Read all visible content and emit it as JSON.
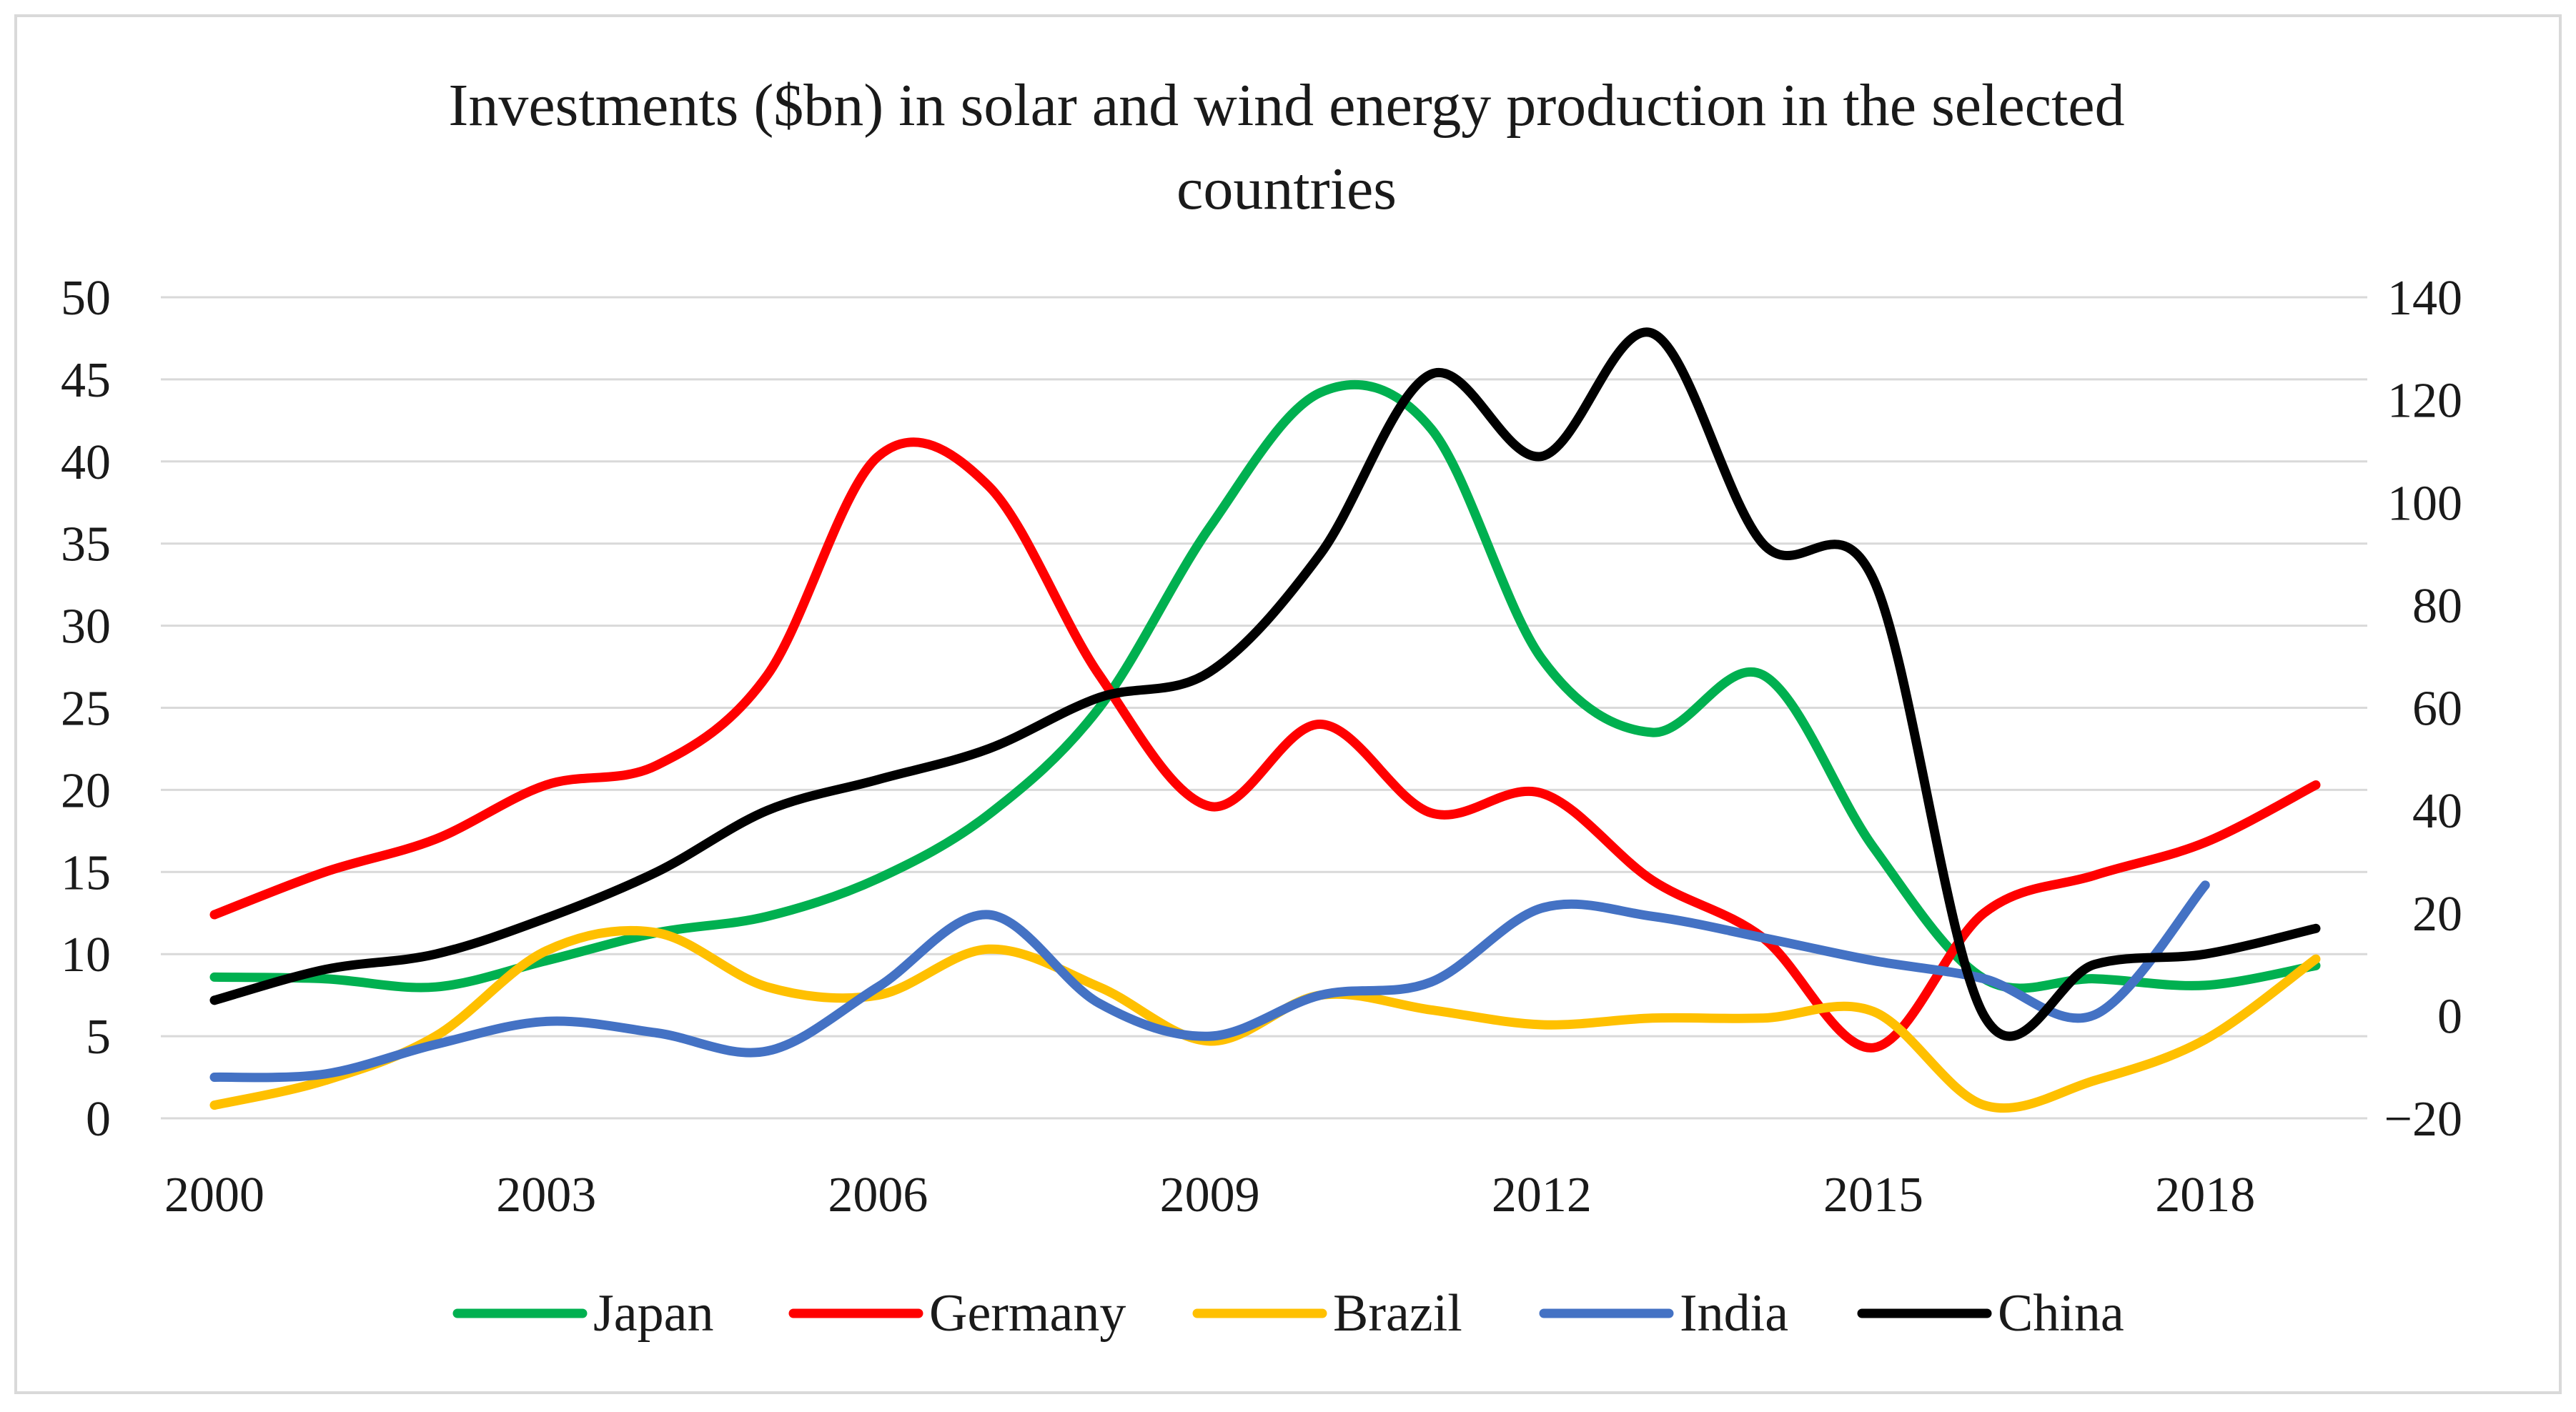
{
  "chart_data": {
    "type": "line",
    "title_lines": [
      "Investments  ($bn) in solar and wind energy production in the selected",
      "countries"
    ],
    "x": [
      2000,
      2001,
      2002,
      2003,
      2004,
      2005,
      2006,
      2007,
      2008,
      2009,
      2010,
      2011,
      2012,
      2013,
      2014,
      2015,
      2016,
      2017,
      2018,
      2019
    ],
    "x_tick_labels": [
      "2000",
      "2003",
      "2006",
      "2009",
      "2012",
      "2015",
      "2018"
    ],
    "left_axis": {
      "ylim": [
        0,
        50
      ],
      "tick_labels": [
        "0",
        "5",
        "10",
        "15",
        "20",
        "25",
        "30",
        "35",
        "40",
        "45",
        "50"
      ]
    },
    "right_axis": {
      "ylim": [
        -20,
        140
      ],
      "tick_labels": [
        "−20",
        "0",
        "20",
        "40",
        "60",
        "80",
        "100",
        "120",
        "140"
      ]
    },
    "grid": true,
    "legend_position": "bottom",
    "series": [
      {
        "name": "Japan",
        "color": "#00b050",
        "axis": "left",
        "values": [
          8.6,
          8.5,
          8.0,
          9.6,
          11.3,
          12.3,
          14.6,
          18.5,
          25.0,
          36.0,
          44.2,
          42.0,
          28.0,
          23.5,
          27.0,
          16.5,
          8.5,
          8.5,
          8.1,
          9.3
        ]
      },
      {
        "name": "Germany",
        "color": "#ff0000",
        "axis": "left",
        "values": [
          12.4,
          15.0,
          17.0,
          20.3,
          21.5,
          27.0,
          40.3,
          38.5,
          27.0,
          19.0,
          24.0,
          18.6,
          19.8,
          14.5,
          11.0,
          4.3,
          12.5,
          14.8,
          16.8,
          20.3
        ]
      },
      {
        "name": "Brazil",
        "color": "#ffc000",
        "axis": "left",
        "values": [
          0.8,
          2.3,
          5.0,
          10.2,
          11.3,
          8.0,
          7.5,
          10.3,
          8.0,
          4.7,
          7.5,
          6.6,
          5.7,
          6.1,
          6.1,
          6.5,
          0.8,
          2.3,
          4.8,
          9.7
        ]
      },
      {
        "name": "India",
        "color": "#4472c4",
        "axis": "left",
        "values": [
          2.5,
          2.7,
          4.5,
          5.9,
          5.2,
          4.1,
          8.0,
          12.4,
          7.0,
          5.0,
          7.5,
          8.3,
          12.8,
          12.3,
          11.0,
          9.6,
          8.5,
          6.3,
          14.2,
          null
        ]
      },
      {
        "name": "China",
        "color": "#000000",
        "axis": "right",
        "values": [
          3,
          9,
          12,
          19,
          28,
          40,
          46,
          52,
          62,
          67,
          90,
          125,
          109,
          133,
          92,
          85,
          0,
          10,
          12,
          17
        ]
      }
    ]
  }
}
